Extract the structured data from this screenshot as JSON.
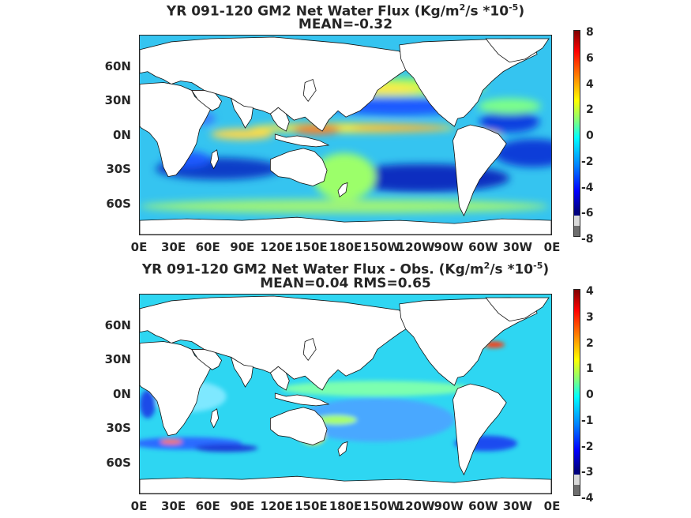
{
  "panels": [
    {
      "title_prefix": "YR 091-120 GM2  Net Water Flux (Kg/m",
      "title_sup1": "2",
      "title_mid": "/s *10",
      "title_sup2": "-5",
      "title_suffix": ")",
      "subtitle": "MEAN=-0.32",
      "colorbar_ticks": [
        "8",
        "6",
        "4",
        "2",
        "0",
        "-2",
        "-4",
        "-6",
        "-8"
      ]
    },
    {
      "title_prefix": "YR 091-120 GM2  Net Water Flux - Obs. (Kg/m",
      "title_sup1": "2",
      "title_mid": "/s *10",
      "title_sup2": "-5",
      "title_suffix": ")",
      "subtitle": "MEAN=0.04 RMS=0.65",
      "colorbar_ticks": [
        "4",
        "3",
        "2",
        "1",
        "0",
        "-1",
        "-2",
        "-3",
        "-4"
      ]
    }
  ],
  "y_ticks": [
    "60N",
    "30N",
    "0N",
    "30S",
    "60S"
  ],
  "x_ticks": [
    "0E",
    "30E",
    "60E",
    "90E",
    "120E",
    "150E",
    "180E",
    "150W",
    "120W",
    "90W",
    "60W",
    "30W",
    "0E"
  ],
  "colors": {
    "ocean_base_top": "#35c4f0",
    "ocean_base_bottom": "#2ed6f2",
    "land": "#ffffff",
    "colorbar": [
      "#7f0000",
      "#ff0000",
      "#ff7f00",
      "#ffff00",
      "#7fff7f",
      "#00ffff",
      "#007fff",
      "#0000ff",
      "#00007f",
      "#d9d9d9",
      "#6e6e6e"
    ]
  }
}
